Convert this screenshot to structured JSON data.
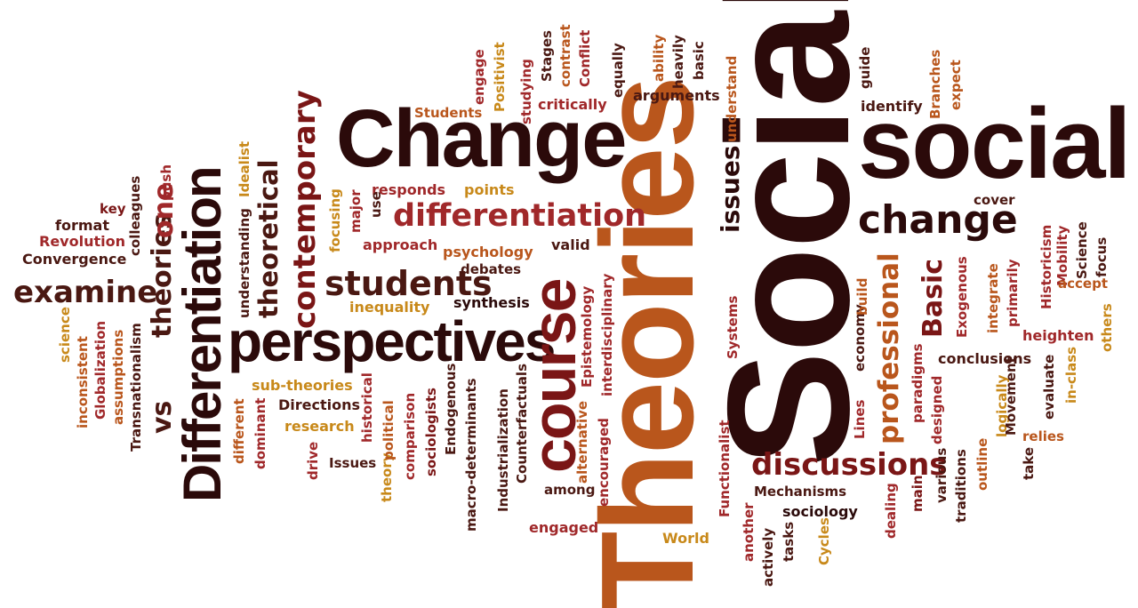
{
  "words": {
    "social_big": "Social",
    "theories_big": "Theories",
    "change_big": "Change",
    "social": "social",
    "perspectives": "perspectives",
    "differentiation_v": "Differentiation",
    "course": "course",
    "change": "change",
    "students": "students",
    "differentiation": "differentiation",
    "discussions": "discussions",
    "examine": "examine",
    "theories": "theories",
    "vs": "vs",
    "one": "one",
    "contemporary": "contemporary",
    "theoretical": "theoretical",
    "professional": "professional",
    "basic": "Basic",
    "issues": "issues",
    "students_small": "Students",
    "engage": "engage",
    "positivist": "Positivist",
    "studying": "studying",
    "stages": "Stages",
    "contrast": "contrast",
    "conflict": "Conflict",
    "critically": "critically",
    "equally": "equally",
    "ability": "ability",
    "heavily": "heavily",
    "basic_small": "basic",
    "arguments": "arguments",
    "understand": "understand",
    "guide": "guide",
    "identify": "identify",
    "branches": "Branches",
    "expect": "expect",
    "cover": "cover",
    "responds": "responds",
    "points": "points",
    "major": "major",
    "use": "use",
    "focusing": "focusing",
    "approach": "approach",
    "valid": "valid",
    "psychology": "psychology",
    "debates": "debates",
    "synthesis": "synthesis",
    "inequality": "inequality",
    "idealist": "Idealist",
    "understanding": "understanding",
    "push": "push",
    "colleagues": "colleagues",
    "key": "key",
    "format": "format",
    "revolution": "Revolution",
    "convergence": "Convergence",
    "science_small": "science",
    "inconsistent": "inconsistent",
    "globalization": "Globalization",
    "assumptions": "assumptions",
    "transnationalism": "Transnationalism",
    "sub_theories": "sub-theories",
    "directions": "Directions",
    "research": "research",
    "issues_cap": "Issues",
    "different": "different",
    "dominant": "dominant",
    "drive": "drive",
    "theory": "theory",
    "historical": "historical",
    "political": "political",
    "comparison": "comparison",
    "sociologists": "sociologists",
    "endogenous": "Endogenous",
    "macro_determinants": "macro-determinants",
    "industrialization": "Industrialization",
    "counterfactuals": "Counterfactuals",
    "epistemology": "Epistemology",
    "interdisciplinary": "interdisciplinary",
    "alternative": "alternative",
    "encouraged": "encouraged",
    "among": "among",
    "engaged": "engaged",
    "world": "World",
    "systems": "Systems",
    "functionalist": "Functionalist",
    "mechanisms": "Mechanisms",
    "sociology": "sociology",
    "another": "another",
    "actively": "actively",
    "tasks": "tasks",
    "cycles": "Cycles",
    "economy": "economy",
    "build": "build",
    "lines": "Lines",
    "dealing": "dealing",
    "paradigms": "paradigms",
    "main": "main",
    "designed": "designed",
    "various": "various",
    "traditions": "traditions",
    "exogenous": "Exogenous",
    "integrate": "integrate",
    "primarily": "primarily",
    "conclusions": "conclusions",
    "outline": "outline",
    "logically": "logically",
    "movement": "Movement",
    "take": "take",
    "evaluate": "evaluate",
    "historicism": "Historicism",
    "mobility": "Mobility",
    "science": "Science",
    "focus": "focus",
    "accept": "accept",
    "heighten": "heighten",
    "in_class": "in-class",
    "relies": "relies",
    "others": "others"
  }
}
